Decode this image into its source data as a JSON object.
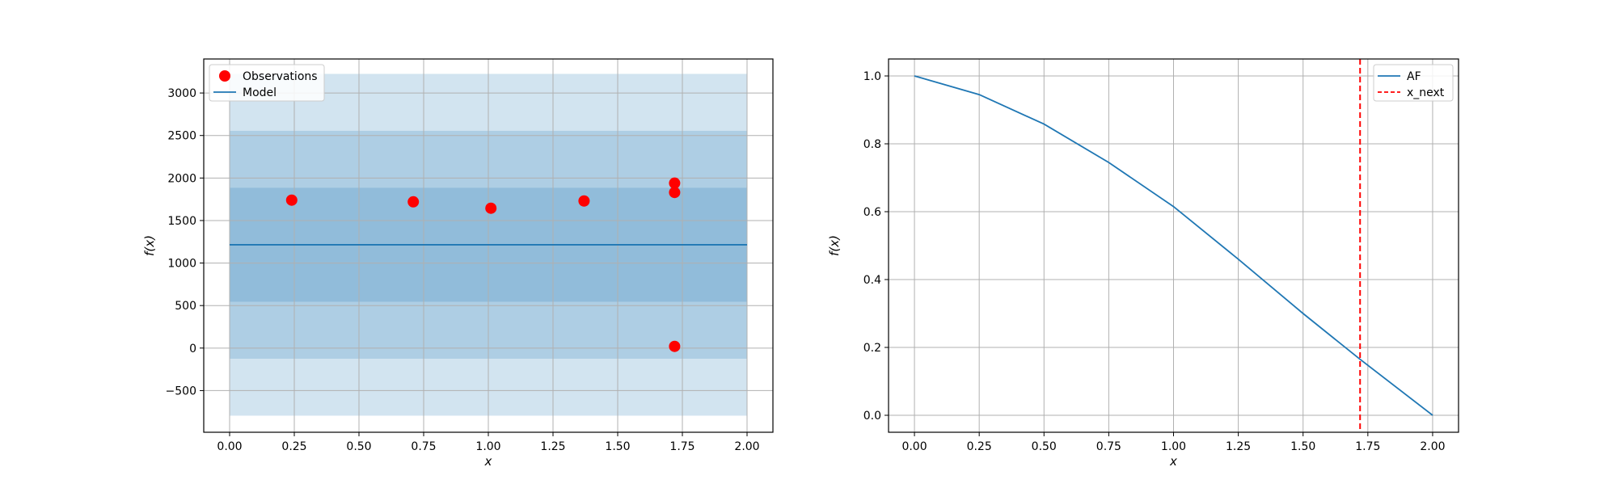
{
  "chart_data": [
    {
      "type": "scatter",
      "xlabel": "x",
      "ylabel": "f(x)",
      "xlim": [
        -0.1,
        2.1
      ],
      "ylim": [
        -990,
        3400
      ],
      "xticks": [
        0.0,
        0.25,
        0.5,
        0.75,
        1.0,
        1.25,
        1.5,
        1.75,
        2.0
      ],
      "xtick_labels": [
        "0.00",
        "0.25",
        "0.50",
        "0.75",
        "1.00",
        "1.25",
        "1.50",
        "1.75",
        "2.00"
      ],
      "yticks": [
        -500,
        0,
        500,
        1000,
        1500,
        2000,
        2500,
        3000
      ],
      "ytick_labels": [
        "−500",
        "0",
        "500",
        "1000",
        "1500",
        "2000",
        "2500",
        "3000"
      ],
      "grid": true,
      "legend_position": "top-left",
      "legend": [
        {
          "label": "Observations",
          "marker": "circle",
          "color": "#ff0000"
        },
        {
          "label": "Model",
          "marker": "line",
          "color": "#1f77b4"
        }
      ],
      "observations": {
        "x": [
          0.24,
          0.71,
          1.01,
          1.37,
          1.72,
          1.72,
          1.72
        ],
        "y": [
          1740,
          1720,
          1645,
          1730,
          1940,
          1830,
          20
        ]
      },
      "model": {
        "x": [
          0.0,
          2.0
        ],
        "mean": 1215,
        "bands": [
          {
            "lower": 545,
            "upper": 1885
          },
          {
            "lower": -125,
            "upper": 2555
          },
          {
            "lower": -795,
            "upper": 3225
          }
        ]
      },
      "colors": {
        "observations": "#ff0000",
        "model": "#1f77b4"
      }
    },
    {
      "type": "line",
      "xlabel": "x",
      "ylabel": "f(x)",
      "xlim": [
        -0.1,
        2.1
      ],
      "ylim": [
        -0.05,
        1.05
      ],
      "xticks": [
        0.0,
        0.25,
        0.5,
        0.75,
        1.0,
        1.25,
        1.5,
        1.75,
        2.0
      ],
      "xtick_labels": [
        "0.00",
        "0.25",
        "0.50",
        "0.75",
        "1.00",
        "1.25",
        "1.50",
        "1.75",
        "2.00"
      ],
      "yticks": [
        0.0,
        0.2,
        0.4,
        0.6,
        0.8,
        1.0
      ],
      "ytick_labels": [
        "0.0",
        "0.2",
        "0.4",
        "0.6",
        "0.8",
        "1.0"
      ],
      "grid": true,
      "legend_position": "top-right",
      "legend": [
        {
          "label": "AF",
          "marker": "line",
          "color": "#1f77b4"
        },
        {
          "label": "x_next",
          "marker": "dashed-line",
          "color": "#ff0000"
        }
      ],
      "series": [
        {
          "name": "AF",
          "x": [
            0.0,
            0.25,
            0.5,
            0.75,
            1.0,
            1.25,
            1.5,
            1.72,
            2.0
          ],
          "y": [
            1.0,
            0.945,
            0.858,
            0.745,
            0.615,
            0.46,
            0.3,
            0.165,
            0.0
          ]
        }
      ],
      "x_next": 1.72,
      "colors": {
        "af": "#1f77b4",
        "x_next": "#ff0000"
      }
    }
  ]
}
